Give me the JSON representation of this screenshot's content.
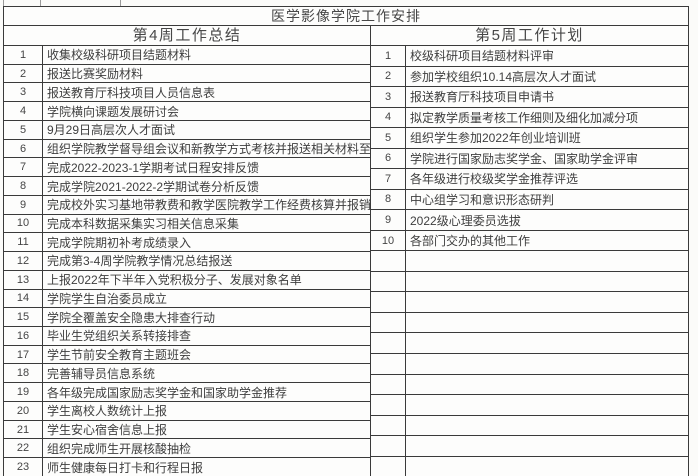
{
  "title": "医学影像学院工作安排",
  "columns": {
    "left": {
      "header": "第4周工作总结",
      "rows": [
        {
          "num": "1",
          "task": "收集校级科研项目结题材料"
        },
        {
          "num": "2",
          "task": "报送比赛奖励材料"
        },
        {
          "num": "3",
          "task": "报送教育厅科技项目人员信息表"
        },
        {
          "num": "4",
          "task": "学院横向课题发展研讨会"
        },
        {
          "num": "5",
          "task": "9月29日高层次人才面试"
        },
        {
          "num": "6",
          "task": "组织学院教学督导组会议和新教学方式考核并报送相关材料至教务处"
        },
        {
          "num": "7",
          "task": "完成2022-2023-1学期考试日程安排反馈"
        },
        {
          "num": "8",
          "task": "完成学院2021-2022-2学期试卷分析反馈"
        },
        {
          "num": "9",
          "task": "完成校外实习基地带教费和教学医院教学工作经费核算并报销"
        },
        {
          "num": "10",
          "task": "完成本科数据采集实习相关信息采集"
        },
        {
          "num": "11",
          "task": "完成学院期初补考成绩录入"
        },
        {
          "num": "12",
          "task": "完成第3-4周学院教学情况总结报送"
        },
        {
          "num": "13",
          "task": "上报2022年下半年入党积极分子、发展对象名单"
        },
        {
          "num": "14",
          "task": "学院学生自治委员成立"
        },
        {
          "num": "15",
          "task": "学院全覆盖安全隐患大排查行动"
        },
        {
          "num": "16",
          "task": "毕业生党组织关系转接排查"
        },
        {
          "num": "17",
          "task": "学生节前安全教育主题班会"
        },
        {
          "num": "18",
          "task": "完善辅导员信息系统"
        },
        {
          "num": "19",
          "task": "各年级完成国家励志奖学金和国家助学金推荐"
        },
        {
          "num": "20",
          "task": "学生离校人数统计上报"
        },
        {
          "num": "21",
          "task": "学生安心宿舍信息上报"
        },
        {
          "num": "22",
          "task": "组织完成师生开展核酸抽检"
        },
        {
          "num": "23",
          "task": "师生健康每日打卡和行程日报"
        }
      ]
    },
    "right": {
      "header": "第5周工作计划",
      "rows": [
        {
          "num": "1",
          "task": "校级科研项目结题材料评审"
        },
        {
          "num": "2",
          "task": "参加学校组织10.14高层次人才面试"
        },
        {
          "num": "3",
          "task": "报送教育厅科技项目申请书"
        },
        {
          "num": "4",
          "task": "拟定教学质量考核工作细则及细化加减分项"
        },
        {
          "num": "5",
          "task": "组织学生参加2022年创业培训班"
        },
        {
          "num": "6",
          "task": "学院进行国家励志奖学金、国家助学金评审"
        },
        {
          "num": "7",
          "task": "各年级进行校级奖学金推荐评选"
        },
        {
          "num": "8",
          "task": "中心组学习和意识形态研判"
        },
        {
          "num": "9",
          "task": "2022级心理委员选拔"
        },
        {
          "num": "10",
          "task": "各部门交办的其他工作"
        }
      ],
      "empty_row_count": 11
    }
  },
  "colors": {
    "border": "#3a3a3a",
    "text": "#3e3e3e",
    "background": "#fbfbf9"
  }
}
